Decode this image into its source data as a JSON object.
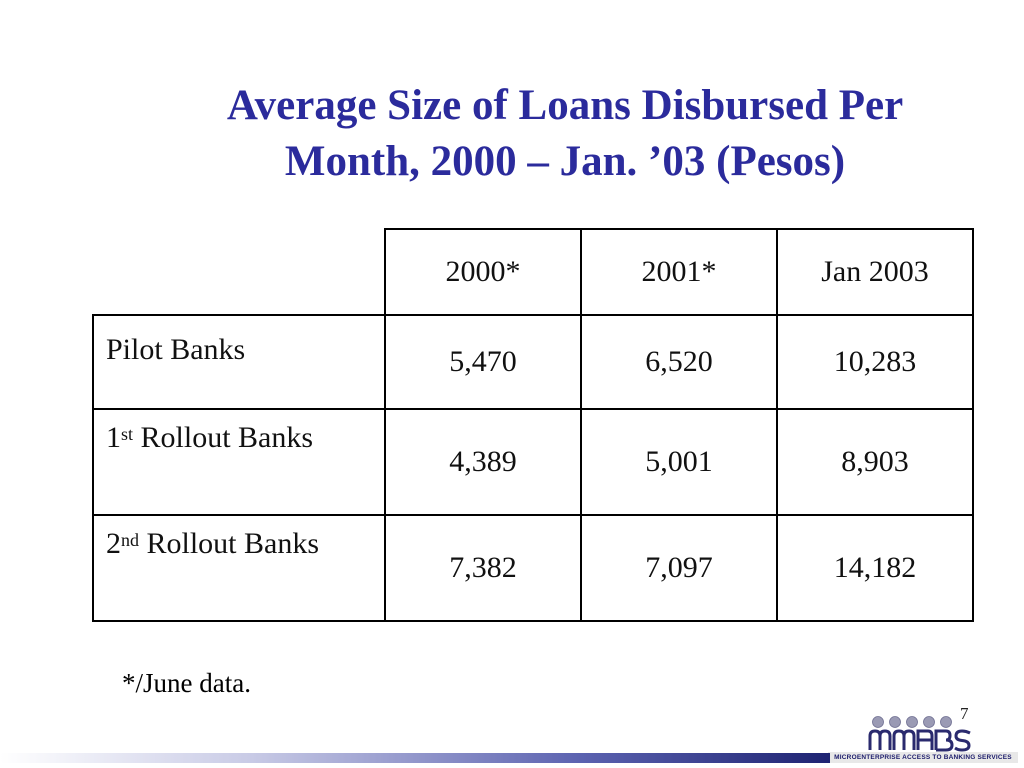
{
  "slide": {
    "title_line1": "Average Size of Loans Disbursed Per",
    "title_line2": "Month, 2000 – Jan. ’03 (Pesos)",
    "footnote": "*/June data.",
    "page_number": "7",
    "logo": {
      "wordmark": "mabs",
      "tagline": "MICROENTERPRISE ACCESS TO BANKING SERVICES"
    },
    "colors": {
      "title": "#2b2b9c",
      "bar_dark": "#1e2372",
      "logo_dots": "#9a9ab4"
    }
  },
  "table": {
    "headers": [
      "2000*",
      "2001*",
      "Jan 2003"
    ],
    "rows": [
      {
        "label_main": "Pilot Banks",
        "label_sup": "",
        "label_rest": "",
        "values": [
          "5,470",
          "6,520",
          "10,283"
        ]
      },
      {
        "label_main": "1",
        "label_sup": "st",
        "label_rest": " Rollout Banks",
        "values": [
          "4,389",
          "5,001",
          "8,903"
        ]
      },
      {
        "label_main": "2",
        "label_sup": "nd",
        "label_rest": " Rollout Banks",
        "values": [
          "7,382",
          "7,097",
          "14,182"
        ]
      }
    ]
  }
}
